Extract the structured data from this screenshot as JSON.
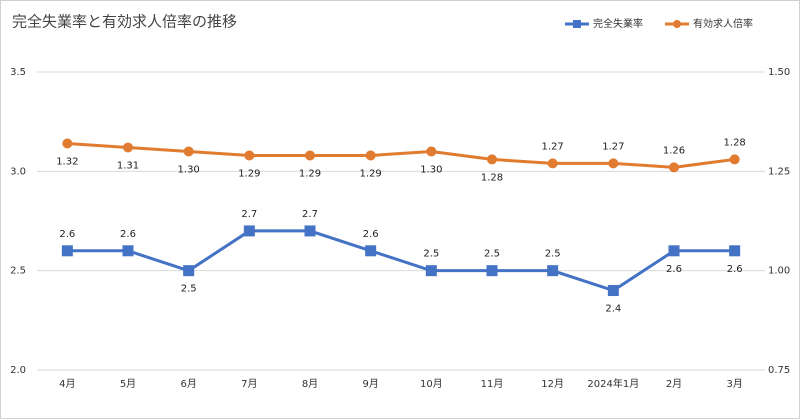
{
  "chart_data": {
    "type": "line",
    "title": "完全失業率と有効求人倍率の推移",
    "categories": [
      "4月",
      "5月",
      "6月",
      "7月",
      "8月",
      "9月",
      "10月",
      "11月",
      "12月",
      "2024年1月",
      "2月",
      "3月"
    ],
    "series": [
      {
        "name": "完全失業率",
        "color": "#4472c4",
        "marker": "square",
        "values": [
          2.6,
          2.6,
          2.5,
          2.7,
          2.7,
          2.6,
          2.5,
          2.5,
          2.5,
          2.4,
          2.6,
          2.6
        ]
      },
      {
        "name": "有効求人倍率",
        "color": "#e07b30",
        "marker": "circle",
        "axis": "y2",
        "values": [
          1.32,
          1.31,
          1.3,
          1.29,
          1.29,
          1.29,
          1.3,
          1.28,
          1.27,
          1.27,
          1.26,
          1.28
        ],
        "value_labels": [
          "1.32",
          "1.31",
          "1.30",
          "1.29",
          "1.29",
          "1.29",
          "1.30",
          "1.28",
          "1.27",
          "1.27",
          "1.26",
          "1.28"
        ]
      }
    ],
    "ylim": [
      2.0,
      3.5
    ],
    "yticks": [
      {
        "value": 2,
        "label": "2.0"
      },
      2.5,
      {
        "value": 3,
        "label": "3.0"
      },
      3.5
    ],
    "y2lim": [
      0.75,
      1.5
    ],
    "y2ticks": [
      0.75,
      {
        "value": 1,
        "label": "1.00"
      },
      1.25,
      {
        "value": 1.5,
        "label": "1.50"
      }
    ],
    "grid": true,
    "legend": "top-right"
  }
}
